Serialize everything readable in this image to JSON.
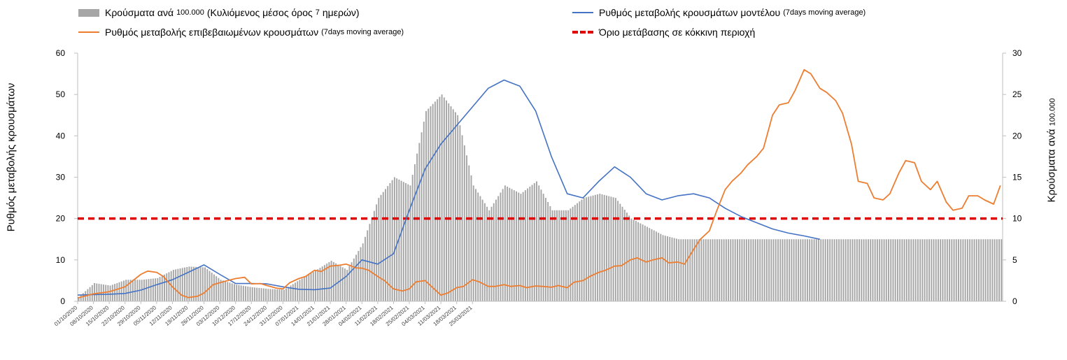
{
  "legend": {
    "bars_main": "Κρούσματα ανά",
    "bars_small1": "100.000",
    "bars_main2": "(Κυλιόμενος μέσος όρος",
    "bars_small2": "7",
    "bars_main3": "ημερών)",
    "model_main": "Ρυθμός μεταβολής κρουσμάτων μοντέλου",
    "model_small": "(7days moving average)",
    "confirmed_main": "Ρυθμός μεταβολής επιβεβαιωμένων κρουσμάτων",
    "confirmed_small": "(7days moving average)",
    "threshold": "Όριο μετάβασης σε κόκκινη περιοχή"
  },
  "axis_labels": {
    "y_left": "Ρυθμός μεταβολής κρουσμάτων",
    "y_right_main": "Κρούσματα ανά",
    "y_right_small": "100.000"
  },
  "colors": {
    "bars": "#a6a6a6",
    "model": "#4472c4",
    "confirmed": "#ed7d31",
    "threshold": "#e00000",
    "axis": "#bfbfbf"
  },
  "chart_data": {
    "type": "bar+line",
    "x_tick_labels": [
      "01/10/2020",
      "08/10/2020",
      "15/10/2020",
      "22/10/2020",
      "29/10/2020",
      "05/11/2020",
      "12/11/2020",
      "19/11/2020",
      "26/11/2020",
      "03/12/2020",
      "10/12/2020",
      "17/12/2020",
      "24/12/2020",
      "31/12/2020",
      "07/01/2021",
      "14/01/2021",
      "21/01/2021",
      "28/01/2021",
      "04/02/2021",
      "11/02/2021",
      "18/02/2021",
      "25/02/2021",
      "04/03/2021",
      "11/03/2021",
      "18/03/2021",
      "25/03/2021"
    ],
    "y_left_lim": [
      0,
      60
    ],
    "y_left_ticks": [
      0,
      10,
      20,
      30,
      40,
      50,
      60
    ],
    "y_right_lim": [
      0,
      30
    ],
    "y_right_ticks": [
      0,
      5,
      10,
      15,
      20,
      25,
      30
    ],
    "threshold_value": 20,
    "bars_right_axis": [
      [
        0,
        0.5
      ],
      [
        7,
        2.2
      ],
      [
        14,
        1.9
      ],
      [
        21,
        2.6
      ],
      [
        28,
        2.6
      ],
      [
        35,
        2.8
      ],
      [
        42,
        3.8
      ],
      [
        49,
        4.2
      ],
      [
        56,
        4.1
      ],
      [
        63,
        2.6
      ],
      [
        70,
        2.0
      ],
      [
        77,
        1.7
      ],
      [
        84,
        1.5
      ],
      [
        91,
        1.4
      ],
      [
        98,
        2.6
      ],
      [
        105,
        3.7
      ],
      [
        112,
        4.9
      ],
      [
        119,
        3.8
      ],
      [
        126,
        7.0
      ],
      [
        133,
        12.5
      ],
      [
        140,
        15.0
      ],
      [
        147,
        14.0
      ],
      [
        154,
        23.0
      ],
      [
        161,
        25.0
      ],
      [
        168,
        22.5
      ],
      [
        175,
        14.0
      ],
      [
        182,
        11.0
      ],
      [
        189,
        14.0
      ],
      [
        196,
        13.0
      ],
      [
        203,
        14.5
      ],
      [
        210,
        11.0
      ],
      [
        217,
        11.0
      ],
      [
        224,
        12.5
      ],
      [
        231,
        13.0
      ],
      [
        238,
        12.5
      ],
      [
        245,
        10.0
      ],
      [
        252,
        9.0
      ],
      [
        259,
        8.0
      ],
      [
        266,
        7.5
      ]
    ],
    "series": [
      {
        "name": "model",
        "axis": "left",
        "points": [
          [
            0,
            1.5
          ],
          [
            7,
            1.6
          ],
          [
            14,
            1.7
          ],
          [
            21,
            1.9
          ],
          [
            28,
            2.7
          ],
          [
            35,
            4.0
          ],
          [
            42,
            5.2
          ],
          [
            49,
            7.0
          ],
          [
            56,
            8.8
          ],
          [
            63,
            6.5
          ],
          [
            70,
            4.3
          ],
          [
            77,
            4.3
          ],
          [
            84,
            4.2
          ],
          [
            91,
            3.5
          ],
          [
            98,
            2.9
          ],
          [
            105,
            2.8
          ],
          [
            112,
            3.2
          ],
          [
            119,
            6.0
          ],
          [
            126,
            10.0
          ],
          [
            133,
            9.0
          ],
          [
            140,
            11.5
          ],
          [
            147,
            22.0
          ],
          [
            154,
            32.0
          ],
          [
            161,
            38.0
          ],
          [
            168,
            42.5
          ],
          [
            175,
            47.0
          ],
          [
            182,
            51.5
          ],
          [
            189,
            53.5
          ],
          [
            196,
            52.0
          ],
          [
            203,
            46.0
          ],
          [
            210,
            35.0
          ],
          [
            217,
            26.0
          ],
          [
            224,
            25.0
          ],
          [
            231,
            29.0
          ],
          [
            238,
            32.5
          ],
          [
            245,
            30.0
          ],
          [
            252,
            26.0
          ],
          [
            259,
            24.5
          ],
          [
            266,
            25.5
          ],
          [
            273,
            26.0
          ],
          [
            280,
            25.0
          ],
          [
            287,
            22.5
          ],
          [
            294,
            20.5
          ],
          [
            301,
            19.0
          ],
          [
            308,
            17.5
          ],
          [
            315,
            16.5
          ],
          [
            322,
            15.8
          ],
          [
            329,
            15.0
          ]
        ]
      },
      {
        "name": "confirmed",
        "axis": "left",
        "points": [
          [
            0,
            0.8
          ],
          [
            7,
            1.8
          ],
          [
            14,
            2.3
          ],
          [
            21,
            3.5
          ],
          [
            28,
            6.5
          ],
          [
            31,
            7.3
          ],
          [
            35,
            7.0
          ],
          [
            38,
            6.0
          ],
          [
            42,
            3.5
          ],
          [
            46,
            1.5
          ],
          [
            49,
            0.9
          ],
          [
            53,
            1.2
          ],
          [
            56,
            2.0
          ],
          [
            60,
            4.0
          ],
          [
            65,
            4.8
          ],
          [
            70,
            5.5
          ],
          [
            74,
            5.8
          ],
          [
            77,
            4.2
          ],
          [
            81,
            4.3
          ],
          [
            84,
            3.8
          ],
          [
            88,
            3.2
          ],
          [
            91,
            3.0
          ],
          [
            94,
            4.5
          ],
          [
            98,
            5.5
          ],
          [
            101,
            6.0
          ],
          [
            105,
            7.5
          ],
          [
            108,
            7.2
          ],
          [
            112,
            8.5
          ],
          [
            116,
            8.7
          ],
          [
            119,
            9.0
          ],
          [
            121,
            8.6
          ],
          [
            123,
            8.1
          ],
          [
            126,
            8.0
          ],
          [
            129,
            7.5
          ],
          [
            133,
            6.0
          ],
          [
            136,
            5.0
          ],
          [
            140,
            3.0
          ],
          [
            144,
            2.5
          ],
          [
            147,
            3.0
          ],
          [
            150,
            4.7
          ],
          [
            154,
            5.0
          ],
          [
            157,
            3.5
          ],
          [
            161,
            1.5
          ],
          [
            164,
            2.0
          ],
          [
            168,
            3.3
          ],
          [
            171,
            3.6
          ],
          [
            175,
            5.2
          ],
          [
            178,
            4.7
          ],
          [
            182,
            3.6
          ],
          [
            185,
            3.6
          ],
          [
            189,
            4.0
          ],
          [
            192,
            3.6
          ],
          [
            196,
            3.8
          ],
          [
            199,
            3.3
          ],
          [
            203,
            3.7
          ],
          [
            206,
            3.6
          ],
          [
            210,
            3.4
          ],
          [
            213,
            3.8
          ],
          [
            217,
            3.3
          ],
          [
            220,
            4.6
          ],
          [
            224,
            5.0
          ],
          [
            227,
            6.0
          ],
          [
            231,
            7.0
          ],
          [
            234,
            7.5
          ],
          [
            238,
            8.5
          ],
          [
            241,
            8.6
          ],
          [
            245,
            10.0
          ],
          [
            248,
            10.5
          ],
          [
            252,
            9.5
          ],
          [
            255,
            10.0
          ],
          [
            259,
            10.5
          ],
          [
            262,
            9.3
          ],
          [
            266,
            9.5
          ],
          [
            269,
            9.0
          ],
          [
            273,
            12.5
          ],
          [
            276,
            15.0
          ],
          [
            280,
            17.0
          ],
          [
            283,
            21.5
          ],
          [
            287,
            27.0
          ],
          [
            290,
            29.0
          ],
          [
            294,
            31.0
          ],
          [
            297,
            33.0
          ],
          [
            301,
            35.0
          ],
          [
            304,
            37.0
          ],
          [
            308,
            45.0
          ],
          [
            311,
            47.5
          ],
          [
            315,
            48.0
          ],
          [
            318,
            51.0
          ],
          [
            322,
            56.0
          ],
          [
            325,
            55.0
          ],
          [
            329,
            51.5
          ],
          [
            332,
            50.5
          ],
          [
            336,
            48.5
          ],
          [
            339,
            45.5
          ],
          [
            343,
            38.0
          ],
          [
            346,
            29.0
          ],
          [
            350,
            28.5
          ],
          [
            353,
            25.0
          ],
          [
            357,
            24.5
          ],
          [
            360,
            26.0
          ],
          [
            364,
            31.0
          ],
          [
            367,
            34.0
          ],
          [
            371,
            33.5
          ],
          [
            374,
            29.0
          ],
          [
            378,
            27.0
          ],
          [
            381,
            29.0
          ],
          [
            385,
            24.0
          ],
          [
            388,
            22.0
          ],
          [
            392,
            22.5
          ],
          [
            395,
            25.5
          ],
          [
            399,
            25.5
          ],
          [
            402,
            24.5
          ],
          [
            406,
            23.5
          ],
          [
            409,
            28.0
          ]
        ]
      }
    ]
  }
}
